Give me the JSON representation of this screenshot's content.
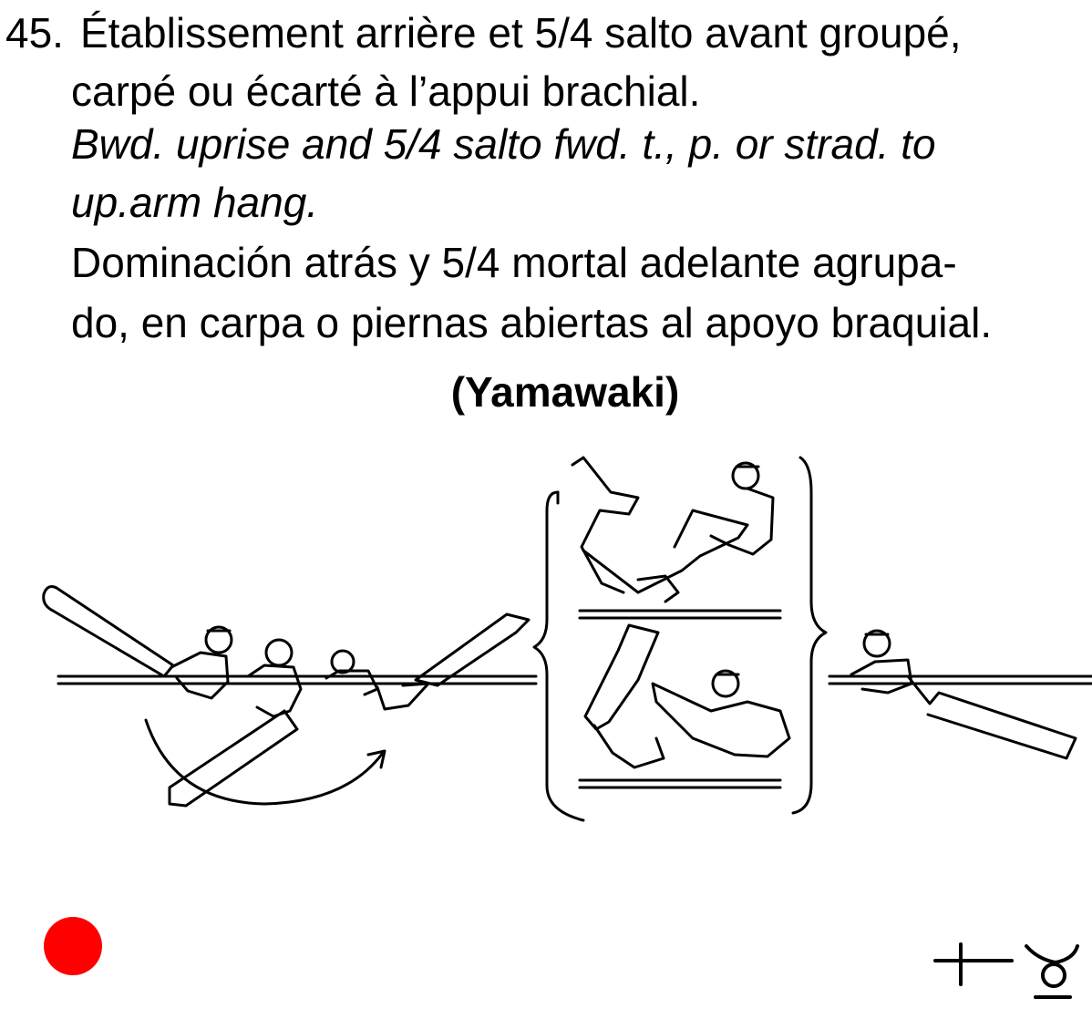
{
  "element": {
    "number": "45.",
    "french_line1": "Établissement arrière et 5/4 salto avant groupé,",
    "french_line2": "carpé ou écarté à l’appui brachial.",
    "english_line1": "Bwd. uprise and 5/4 salto fwd. t., p. or strad. to",
    "english_line2": "up.arm hang.",
    "spanish_line1": "Dominación atrás y 5/4 mortal adelante agrupa-",
    "spanish_line2": "do, en carpa o piernas abiertas al apoyo braquial.",
    "name": "(Yamawaki)"
  },
  "figure": {
    "description_icon": "gymnast-sequence-illustration"
  },
  "difficulty": {
    "marker_color": "#ff0000",
    "marker_icon": "red-dot-icon",
    "symbol_icon": "element-symbol-icon"
  }
}
